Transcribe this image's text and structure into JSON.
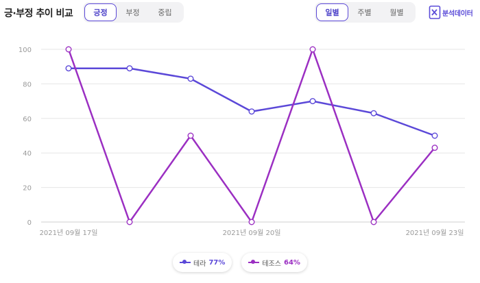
{
  "header": {
    "title": "긍·부정 추이 비교",
    "sentiment_tabs": [
      "긍정",
      "부정",
      "중립"
    ],
    "sentiment_active": 0,
    "period_tabs": [
      "일별",
      "주별",
      "월별"
    ],
    "period_active": 0,
    "export_label": "분석데이터"
  },
  "legend": [
    {
      "name": "테라",
      "pct": "77%",
      "color": "#5b48d8"
    },
    {
      "name": "테조스",
      "pct": "64%",
      "color": "#9b2fc2"
    }
  ],
  "chart_data": {
    "type": "line",
    "x": [
      "2021-09-17",
      "2021-09-18",
      "2021-09-19",
      "2021-09-20",
      "2021-09-21",
      "2021-09-22",
      "2021-09-23"
    ],
    "x_tick_labels": [
      {
        "index": 0,
        "label": "2021년 09월 17일"
      },
      {
        "index": 3,
        "label": "2021년 09월 20일"
      },
      {
        "index": 6,
        "label": "2021년 09월 23일"
      }
    ],
    "series": [
      {
        "name": "테라",
        "color": "#5b48d8",
        "values": [
          89,
          89,
          83,
          64,
          70,
          63,
          50
        ]
      },
      {
        "name": "테조스",
        "color": "#9b2fc2",
        "values": [
          100,
          0,
          50,
          0,
          100,
          0,
          43
        ]
      }
    ],
    "ylim": [
      0,
      100
    ],
    "yticks": [
      0,
      20,
      40,
      60,
      80,
      100
    ],
    "grid": true,
    "legend_position": "bottom"
  }
}
